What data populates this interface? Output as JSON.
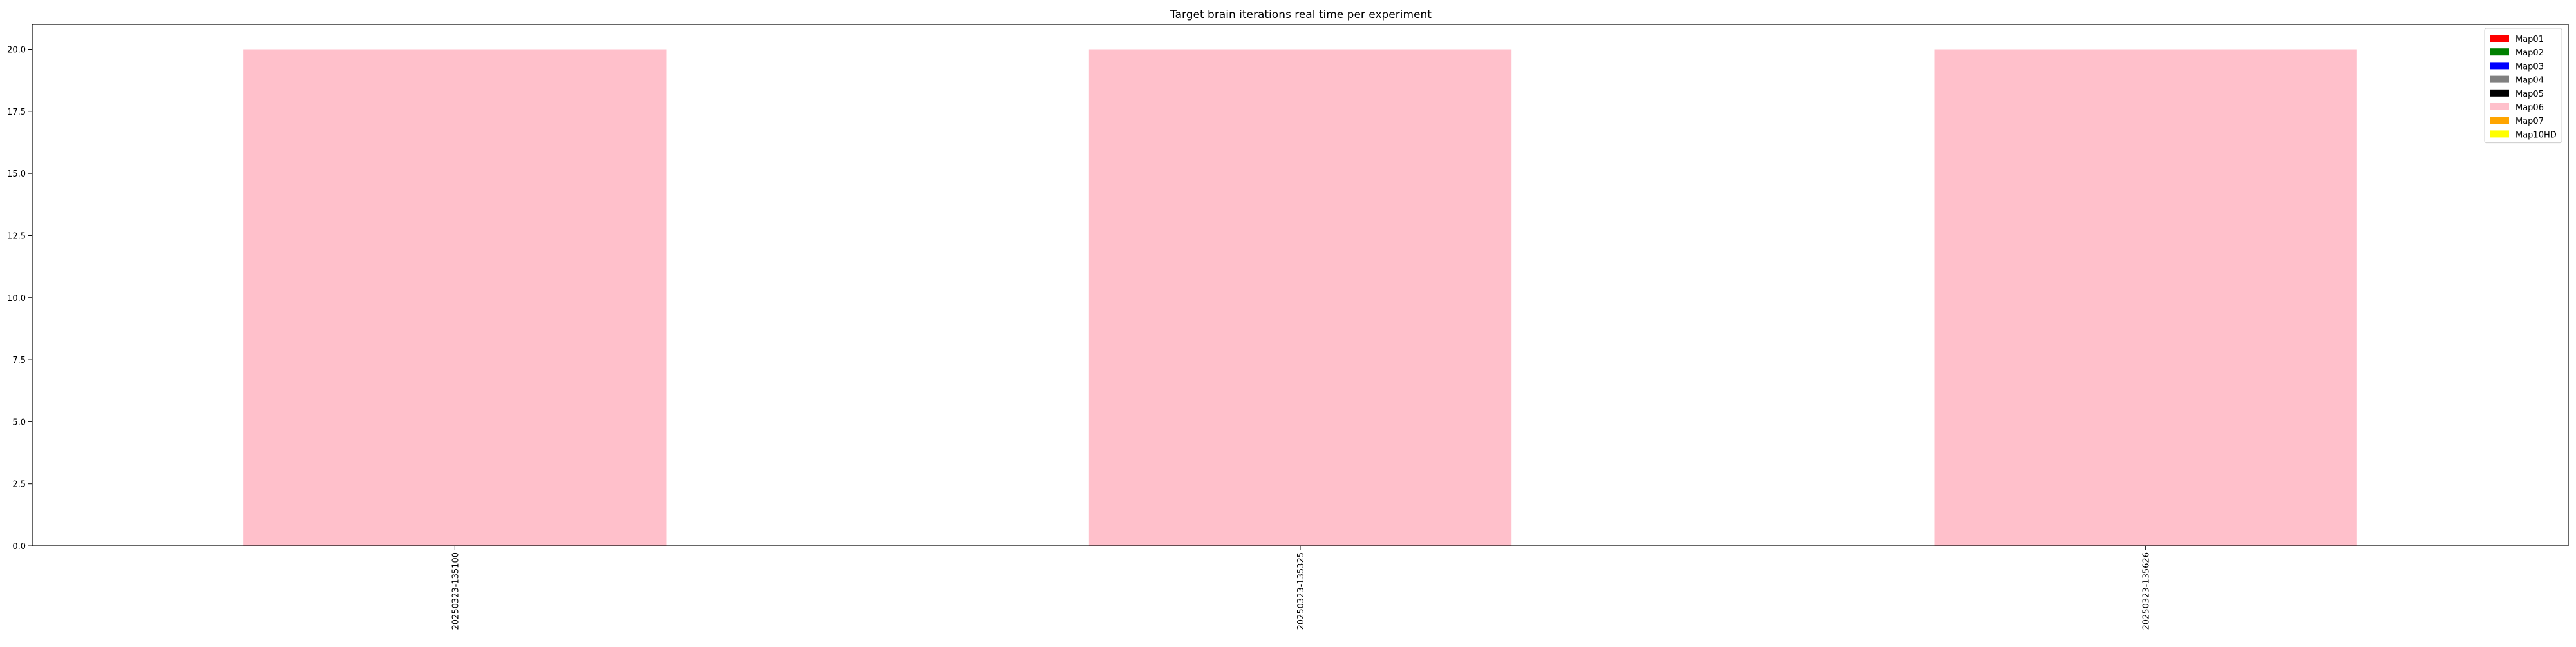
{
  "chart_data": {
    "type": "bar",
    "title": "Target brain iterations real time per experiment",
    "xlabel": "",
    "ylabel": "",
    "categories": [
      "20250323-135100",
      "20250323-135325",
      "20250323-135626"
    ],
    "ylim": [
      0,
      21
    ],
    "yticks": [
      0.0,
      2.5,
      5.0,
      7.5,
      10.0,
      12.5,
      15.0,
      17.5,
      20.0
    ],
    "ytick_labels": [
      "0.0",
      "2.5",
      "5.0",
      "7.5",
      "10.0",
      "12.5",
      "15.0",
      "17.5",
      "20.0"
    ],
    "grid": false,
    "legend_position": "top-right",
    "series": [
      {
        "name": "Map01",
        "color": "#ff0000",
        "values": [
          0,
          0,
          0
        ]
      },
      {
        "name": "Map02",
        "color": "#008000",
        "values": [
          0,
          0,
          0
        ]
      },
      {
        "name": "Map03",
        "color": "#0000ff",
        "values": [
          0,
          0,
          0
        ]
      },
      {
        "name": "Map04",
        "color": "#808080",
        "values": [
          0,
          0,
          0
        ]
      },
      {
        "name": "Map05",
        "color": "#000000",
        "values": [
          0,
          0,
          0
        ]
      },
      {
        "name": "Map06",
        "color": "#ffc0cb",
        "values": [
          20,
          20,
          20
        ]
      },
      {
        "name": "Map07",
        "color": "#ffa500",
        "values": [
          0,
          0,
          0
        ]
      },
      {
        "name": "Map10HD",
        "color": "#ffff00",
        "values": [
          0,
          0,
          0
        ]
      }
    ]
  }
}
